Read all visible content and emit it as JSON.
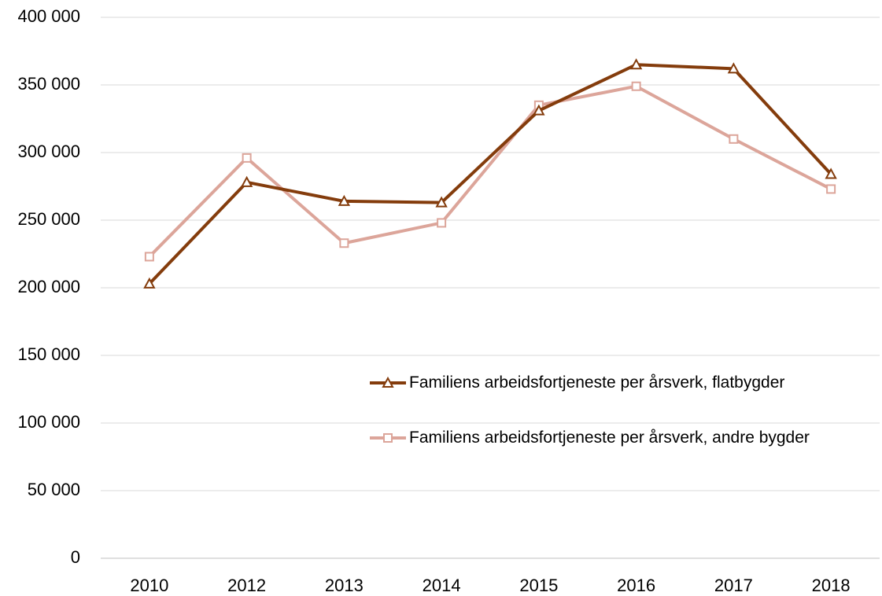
{
  "chart_data": {
    "type": "line",
    "categories": [
      "2010",
      "2012",
      "2013",
      "2014",
      "2015",
      "2016",
      "2017",
      "2018"
    ],
    "series": [
      {
        "name": "Familiens arbeidsfortjeneste per årsverk, flatbygder",
        "color": "#843c0c",
        "marker": "triangle",
        "values": [
          203000,
          278000,
          264000,
          263000,
          331000,
          365000,
          362000,
          284000
        ]
      },
      {
        "name": "Familiens arbeidsfortjeneste per årsverk, andre bygder",
        "color": "#dca59a",
        "marker": "square",
        "values": [
          223000,
          296000,
          233000,
          248000,
          335000,
          349000,
          310000,
          273000
        ]
      }
    ],
    "ylim": [
      0,
      400000
    ],
    "yticks": [
      {
        "value": 0,
        "label": "0"
      },
      {
        "value": 50000,
        "label": "50 000"
      },
      {
        "value": 100000,
        "label": "100 000"
      },
      {
        "value": 150000,
        "label": "150 000"
      },
      {
        "value": 200000,
        "label": "200 000"
      },
      {
        "value": 250000,
        "label": "250 000"
      },
      {
        "value": 300000,
        "label": "300 000"
      },
      {
        "value": 350000,
        "label": "350 000"
      },
      {
        "value": 400000,
        "label": "400 000"
      }
    ],
    "grid": true,
    "legend": "right"
  }
}
